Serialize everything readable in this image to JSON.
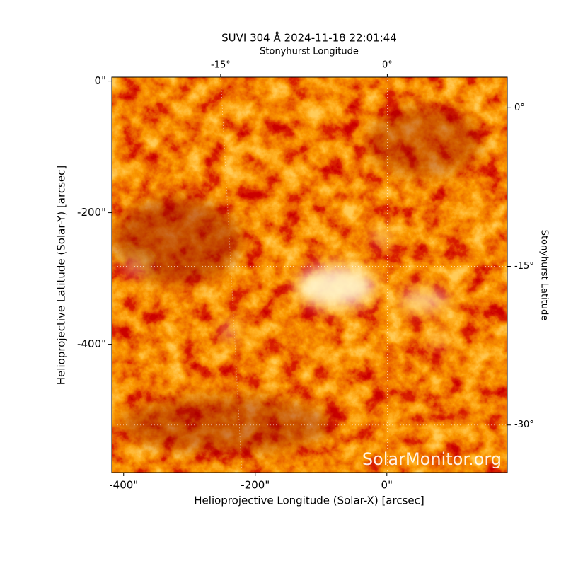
{
  "chart_data": {
    "type": "image",
    "title": "SUVI 304 Å 2024-11-18 22:01:44",
    "xlabel": "Helioprojective Longitude (Solar-X) [arcsec]",
    "ylabel": "Helioprojective Latitude (Solar-Y) [arcsec]",
    "x2label": "Stonyhurst Longitude",
    "y2label": "Stonyhurst Latitude",
    "watermark": "SolarMonitor.org",
    "xlim": [
      -418,
      183
    ],
    "ylim": [
      -595,
      6
    ],
    "xticks": [
      {
        "value": -400,
        "label": "-400\""
      },
      {
        "value": -200,
        "label": "-200\""
      },
      {
        "value": 0,
        "label": "0\""
      }
    ],
    "yticks": [
      {
        "value": 0,
        "label": "0\""
      },
      {
        "value": -200,
        "label": "-200\""
      },
      {
        "value": -400,
        "label": "-400\""
      }
    ],
    "x2lim": [
      -24.8,
      10.8
    ],
    "x2ticks": [
      {
        "value": -15,
        "label": "-15°"
      },
      {
        "value": 0,
        "label": "0°"
      }
    ],
    "y2lim": [
      -34.5,
      2.9
    ],
    "y2ticks": [
      {
        "value": 0,
        "label": "0°"
      },
      {
        "value": -15,
        "label": "-15°"
      },
      {
        "value": -30,
        "label": "-30°"
      }
    ],
    "grid": true
  }
}
